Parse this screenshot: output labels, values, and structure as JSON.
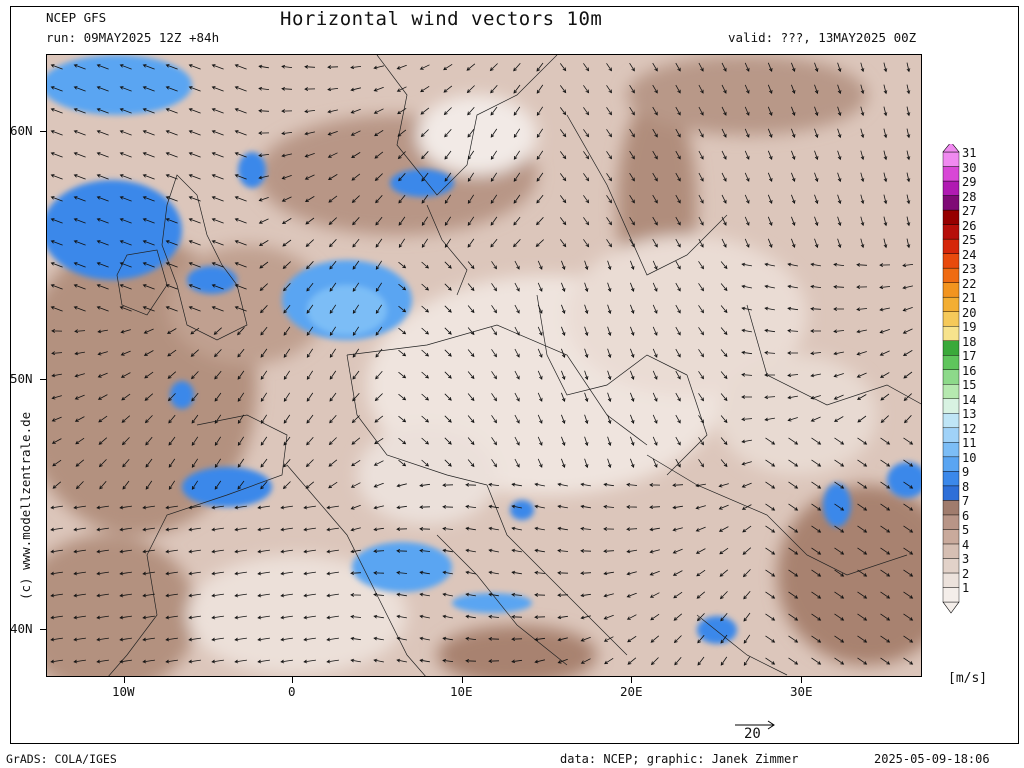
{
  "header": {
    "model": "NCEP GFS",
    "run": "run: 09MAY2025 12Z +84h",
    "title": "Horizontal wind vectors 10m",
    "valid": "valid: ???, 13MAY2025 00Z"
  },
  "axes": {
    "lat_labels": [
      "60N",
      "50N",
      "40N"
    ],
    "lon_labels": [
      "10W",
      "0",
      "10E",
      "20E",
      "30E"
    ]
  },
  "colorbar": {
    "unit": "[m/s]",
    "levels": [
      "1",
      "2",
      "3",
      "4",
      "5",
      "6",
      "7",
      "8",
      "9",
      "10",
      "11",
      "12",
      "13",
      "14",
      "15",
      "16",
      "17",
      "18",
      "19",
      "20",
      "21",
      "22",
      "23",
      "24",
      "25",
      "26",
      "27",
      "28",
      "29",
      "30",
      "31"
    ],
    "colors": [
      "#f4eeea",
      "#ece2dc",
      "#e2d2c9",
      "#d6bfb3",
      "#c9aa9c",
      "#b89587",
      "#a07c6d",
      "#2e6fd8",
      "#3b88ea",
      "#5aa5f2",
      "#7cbdf6",
      "#a0d2f8",
      "#bfe5f6",
      "#d8f2e2",
      "#b6e9b0",
      "#8dd98a",
      "#5fc55c",
      "#3aa93a",
      "#f7e38d",
      "#f5c95a",
      "#f3ae33",
      "#f2941f",
      "#ef6b12",
      "#e84a0c",
      "#d5260a",
      "#b60f0a",
      "#960000",
      "#7f0a76",
      "#b01ab2",
      "#d847d6",
      "#f08af0"
    ]
  },
  "reference_vector": {
    "label": "20"
  },
  "credit": "(c) www.modellzentrale.de",
  "footer": {
    "left": "GrADS: COLA/IGES",
    "center": "data: NCEP; graphic: Janek Zimmer",
    "right": "2025-05-09-18:06"
  }
}
